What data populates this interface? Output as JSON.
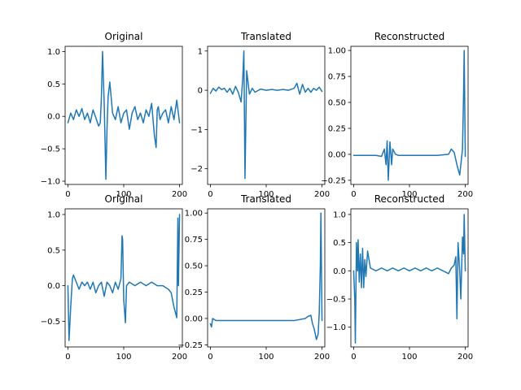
{
  "figure": {
    "line_color": "#1f77b4"
  },
  "chart_data": [
    {
      "type": "line",
      "title": "Original",
      "xlabel": "",
      "ylabel": "",
      "xlim": [
        -5,
        205
      ],
      "ylim": [
        -1.05,
        1.08
      ],
      "xticks": [
        0,
        100,
        200
      ],
      "xtick_labels": [
        "0",
        "100",
        "200"
      ],
      "yticks": [
        -1.0,
        -0.5,
        0.0,
        0.5,
        1.0
      ],
      "ytick_labels": [
        "−1.0",
        "−0.5",
        "0.0",
        "0.5",
        "1.0"
      ],
      "grid": false,
      "x": [
        0,
        5,
        10,
        15,
        20,
        25,
        30,
        35,
        40,
        45,
        50,
        55,
        58,
        60,
        62,
        65,
        68,
        70,
        72,
        75,
        80,
        85,
        90,
        95,
        100,
        105,
        110,
        115,
        120,
        125,
        130,
        135,
        140,
        145,
        150,
        155,
        158,
        160,
        162,
        165,
        170,
        175,
        180,
        185,
        190,
        195,
        200
      ],
      "values": [
        -0.1,
        0.05,
        -0.05,
        0.1,
        0.0,
        0.12,
        -0.05,
        0.05,
        -0.1,
        0.1,
        -0.02,
        -0.15,
        -0.1,
        0.3,
        1.0,
        0.2,
        -0.97,
        -0.2,
        0.3,
        0.53,
        0.05,
        -0.05,
        0.15,
        -0.1,
        0.05,
        0.1,
        -0.2,
        0.05,
        0.15,
        -0.05,
        0.05,
        -0.1,
        0.1,
        0.0,
        0.2,
        -0.3,
        -0.48,
        0.1,
        0.15,
        -0.05,
        0.05,
        0.1,
        -0.1,
        0.15,
        -0.05,
        0.25,
        -0.1
      ]
    },
    {
      "type": "line",
      "title": "Translated",
      "xlabel": "",
      "ylabel": "",
      "xlim": [
        -5,
        205
      ],
      "ylim": [
        -2.4,
        1.12
      ],
      "xticks": [
        0,
        100,
        200
      ],
      "xtick_labels": [
        "0",
        "100",
        "200"
      ],
      "yticks": [
        -2,
        -1,
        0,
        1
      ],
      "ytick_labels": [
        "−2",
        "−1",
        "0",
        "1"
      ],
      "grid": false,
      "x": [
        0,
        5,
        10,
        15,
        20,
        25,
        30,
        35,
        40,
        45,
        50,
        55,
        58,
        60,
        62,
        65,
        70,
        75,
        80,
        90,
        100,
        110,
        120,
        130,
        140,
        150,
        155,
        160,
        165,
        170,
        175,
        180,
        185,
        190,
        195,
        200
      ],
      "values": [
        -0.08,
        0.05,
        -0.02,
        0.08,
        0.02,
        0.05,
        -0.05,
        0.05,
        -0.1,
        0.1,
        -0.05,
        -0.3,
        0.3,
        1.0,
        -2.25,
        0.5,
        -0.1,
        0.05,
        -0.05,
        0.03,
        0.0,
        0.02,
        0.0,
        0.02,
        0.0,
        0.05,
        0.18,
        -0.1,
        0.15,
        -0.05,
        0.05,
        -0.05,
        0.05,
        0.0,
        0.08,
        -0.03
      ]
    },
    {
      "type": "line",
      "title": "Reconstructed",
      "xlabel": "",
      "ylabel": "",
      "xlim": [
        -5,
        205
      ],
      "ylim": [
        -0.29,
        1.04
      ],
      "xticks": [
        0,
        100,
        200
      ],
      "xtick_labels": [
        "0",
        "100",
        "200"
      ],
      "yticks": [
        -0.25,
        0.0,
        0.25,
        0.5,
        0.75,
        1.0
      ],
      "ytick_labels": [
        "−0.25",
        "0.00",
        "0.25",
        "0.50",
        "0.75",
        "1.00"
      ],
      "grid": false,
      "x": [
        0,
        20,
        40,
        50,
        55,
        58,
        60,
        62,
        65,
        68,
        70,
        75,
        80,
        100,
        150,
        170,
        175,
        180,
        185,
        190,
        195,
        197,
        198,
        200
      ],
      "values": [
        -0.01,
        -0.01,
        -0.01,
        -0.02,
        0.05,
        -0.1,
        0.13,
        -0.25,
        0.12,
        -0.1,
        0.05,
        0.0,
        -0.01,
        -0.01,
        -0.01,
        0.0,
        0.05,
        0.02,
        -0.1,
        -0.2,
        0.05,
        0.6,
        1.0,
        -0.02
      ]
    },
    {
      "type": "line",
      "title": "Original",
      "xlabel": "",
      "ylabel": "",
      "xlim": [
        -5,
        205
      ],
      "ylim": [
        -0.86,
        1.08
      ],
      "xticks": [
        0,
        100,
        200
      ],
      "xtick_labels": [
        "0",
        "100",
        "200"
      ],
      "yticks": [
        -0.5,
        0.0,
        0.5,
        1.0
      ],
      "ytick_labels": [
        "−0.5",
        "0.0",
        "0.5",
        "1.0"
      ],
      "grid": false,
      "x": [
        0,
        2,
        5,
        8,
        10,
        15,
        20,
        25,
        30,
        35,
        40,
        45,
        50,
        55,
        60,
        65,
        70,
        75,
        80,
        85,
        90,
        95,
        97,
        98,
        100,
        103,
        105,
        110,
        120,
        130,
        140,
        150,
        160,
        170,
        180,
        185,
        190,
        195,
        197,
        198,
        200
      ],
      "values": [
        0.0,
        -0.77,
        -0.3,
        0.1,
        0.15,
        0.05,
        -0.05,
        0.05,
        0.0,
        0.05,
        -0.05,
        0.05,
        -0.1,
        0.0,
        0.05,
        -0.15,
        0.05,
        0.0,
        -0.1,
        0.05,
        -0.05,
        0.1,
        0.7,
        0.65,
        -0.2,
        -0.52,
        0.0,
        0.05,
        0.0,
        0.05,
        0.0,
        0.05,
        0.0,
        0.0,
        -0.05,
        -0.1,
        -0.3,
        -0.45,
        0.95,
        0.0,
        1.0
      ]
    },
    {
      "type": "line",
      "title": "Translated",
      "xlabel": "",
      "ylabel": "",
      "xlim": [
        -5,
        205
      ],
      "ylim": [
        -0.27,
        1.04
      ],
      "xticks": [
        0,
        100,
        200
      ],
      "xtick_labels": [
        "0",
        "100",
        "200"
      ],
      "yticks": [
        -0.25,
        0.0,
        0.25,
        0.5,
        0.75,
        1.0
      ],
      "ytick_labels": [
        "−0.25",
        "0.00",
        "0.25",
        "0.50",
        "0.75",
        "1.00"
      ],
      "grid": false,
      "x": [
        0,
        2,
        4,
        10,
        20,
        50,
        100,
        150,
        170,
        175,
        180,
        183,
        186,
        190,
        193,
        195,
        197,
        198,
        200
      ],
      "values": [
        -0.05,
        -0.08,
        0.0,
        -0.02,
        -0.02,
        -0.02,
        -0.02,
        -0.02,
        0.0,
        0.02,
        0.03,
        -0.05,
        -0.1,
        -0.2,
        -0.15,
        0.05,
        0.5,
        1.0,
        -0.02
      ]
    },
    {
      "type": "line",
      "title": "Reconstructed",
      "xlabel": "",
      "ylabel": "",
      "xlim": [
        -5,
        205
      ],
      "ylim": [
        -1.35,
        1.1
      ],
      "xticks": [
        0,
        100,
        200
      ],
      "xtick_labels": [
        "0",
        "100",
        "200"
      ],
      "yticks": [
        -1.0,
        -0.5,
        0.0,
        0.5,
        1.0
      ],
      "ytick_labels": [
        "−1.0",
        "−0.5",
        "0.0",
        "0.5",
        "1.0"
      ],
      "grid": false,
      "x": [
        0,
        2,
        3,
        5,
        7,
        8,
        10,
        12,
        14,
        16,
        18,
        20,
        22,
        25,
        30,
        40,
        50,
        60,
        70,
        80,
        90,
        100,
        110,
        120,
        130,
        140,
        150,
        160,
        170,
        175,
        180,
        183,
        185,
        187,
        190,
        192,
        195,
        197,
        198,
        200
      ],
      "values": [
        0.0,
        -0.5,
        -1.28,
        0.5,
        0.0,
        0.55,
        -0.2,
        0.3,
        -0.3,
        0.4,
        -0.3,
        0.2,
        -0.1,
        0.35,
        0.05,
        0.0,
        0.05,
        0.0,
        0.05,
        0.0,
        0.05,
        0.0,
        0.05,
        0.0,
        0.05,
        0.0,
        0.05,
        0.0,
        -0.05,
        0.05,
        0.1,
        0.25,
        -0.85,
        0.5,
        0.0,
        -0.5,
        0.6,
        0.3,
        1.0,
        0.0
      ]
    }
  ]
}
